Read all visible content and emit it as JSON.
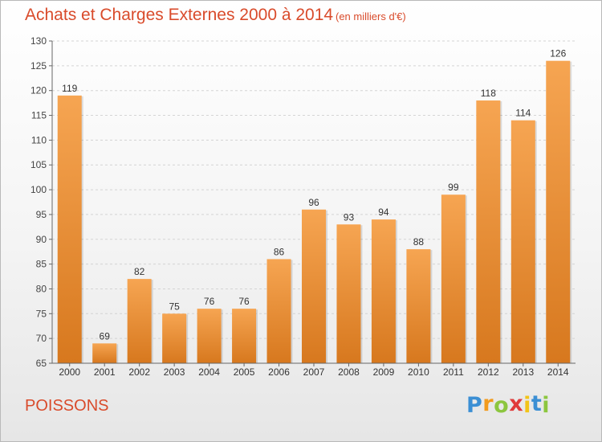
{
  "title": "Achats et Charges Externes 2000 à 2014",
  "subtitle": "(en milliers d'€)",
  "commune": "POISSONS",
  "logo": {
    "letters": [
      "P",
      "r",
      "o",
      "x",
      "i",
      "t",
      "i"
    ],
    "colors": [
      "#3b8fd4",
      "#f29b1d",
      "#8cc63f",
      "#e03a3a",
      "#f2c419",
      "#3b8fd4",
      "#8cc63f"
    ]
  },
  "colors": {
    "accent": "#d94b2b",
    "bar_top": "#f6a552",
    "bar_bottom": "#d7781e"
  },
  "chart_data": {
    "type": "bar",
    "categories": [
      "2000",
      "2001",
      "2002",
      "2003",
      "2004",
      "2005",
      "2006",
      "2007",
      "2008",
      "2009",
      "2010",
      "2011",
      "2012",
      "2013",
      "2014"
    ],
    "values": [
      119,
      69,
      82,
      75,
      76,
      76,
      86,
      96,
      93,
      94,
      88,
      99,
      118,
      114,
      126
    ],
    "ylim": [
      65,
      130
    ],
    "yticks": [
      65,
      70,
      75,
      80,
      85,
      90,
      95,
      100,
      105,
      110,
      115,
      120,
      125,
      130
    ],
    "grid": true,
    "data_labels": true
  }
}
